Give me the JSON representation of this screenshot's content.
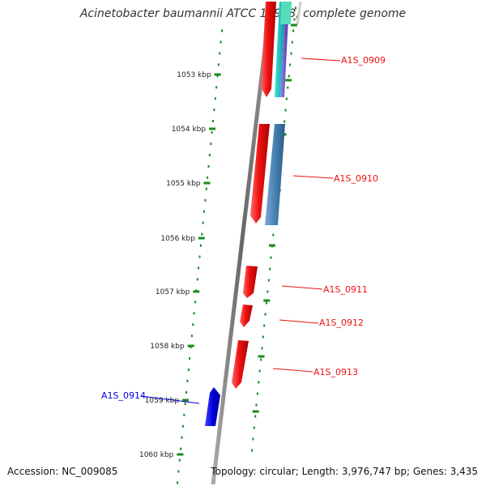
{
  "title": "Acinetobacter baumannii ATCC 17978, complete genome",
  "accession": "Accession: NC_009085",
  "topology": "Topology: circular; Length: 3,976,747 bp; Genes: 3,435",
  "ticks": [
    {
      "label": "1053 kbp"
    },
    {
      "label": "1054 kbp"
    },
    {
      "label": "1055 kbp"
    },
    {
      "label": "1056 kbp"
    },
    {
      "label": "1057 kbp"
    },
    {
      "label": "1058 kbp"
    },
    {
      "label": "1059 kbp"
    },
    {
      "label": "1060 kbp"
    }
  ],
  "genes": [
    {
      "id": "A1S_0909",
      "label": "A1S_0909",
      "color": "#ee1111"
    },
    {
      "id": "A1S_0910",
      "label": "A1S_0910",
      "color": "#ee1111"
    },
    {
      "id": "A1S_0911",
      "label": "A1S_0911",
      "color": "#ee1111"
    },
    {
      "id": "A1S_0912",
      "label": "A1S_0912",
      "color": "#ee1111"
    },
    {
      "id": "A1S_0913",
      "label": "A1S_0913",
      "color": "#ee1111"
    },
    {
      "id": "A1S_0914",
      "label": "A1S_0914",
      "color": "#0000dd"
    }
  ],
  "colors": {
    "forward_gene": "#ee1111",
    "reverse_gene": "#0000dd",
    "ruler_dots": "#1a8a1a",
    "backbone": "#777777",
    "cyan_feature": "#00b8b8",
    "steel_feature": "#4682b4",
    "purple_feature": "#6a5acd"
  }
}
